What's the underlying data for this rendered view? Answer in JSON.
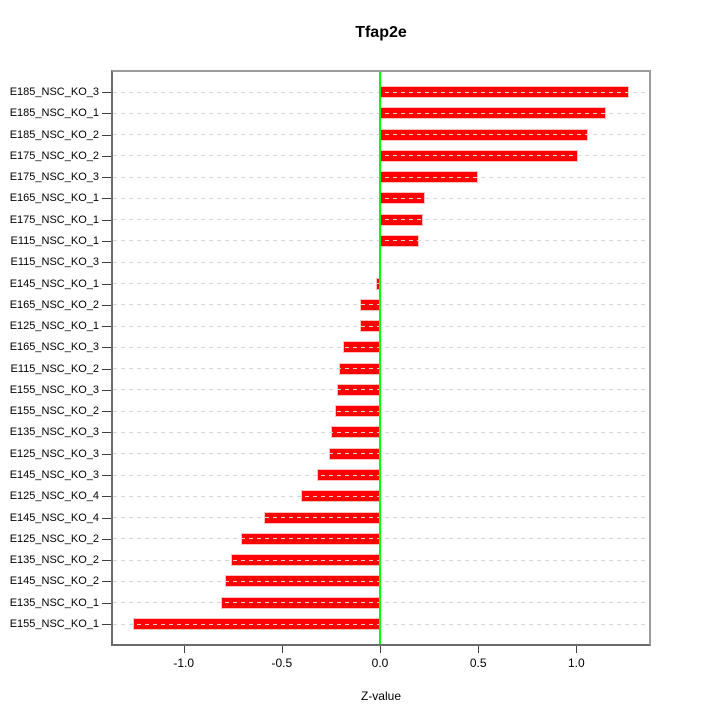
{
  "figure": {
    "background": "#ffffff"
  },
  "chart_data": {
    "type": "bar",
    "orientation": "horizontal",
    "title": "Tfap2e",
    "xlabel": "Z-value",
    "ylabel": "",
    "legend": "none",
    "grid": "horizontal dashed line per category",
    "categories": [
      "E185_NSC_KO_3",
      "E185_NSC_KO_1",
      "E185_NSC_KO_2",
      "E175_NSC_KO_2",
      "E175_NSC_KO_3",
      "E165_NSC_KO_1",
      "E175_NSC_KO_1",
      "E115_NSC_KO_1",
      "E115_NSC_KO_3",
      "E145_NSC_KO_1",
      "E165_NSC_KO_2",
      "E125_NSC_KO_1",
      "E165_NSC_KO_3",
      "E115_NSC_KO_2",
      "E155_NSC_KO_3",
      "E155_NSC_KO_2",
      "E135_NSC_KO_3",
      "E125_NSC_KO_3",
      "E145_NSC_KO_3",
      "E125_NSC_KO_4",
      "E145_NSC_KO_4",
      "E125_NSC_KO_2",
      "E135_NSC_KO_2",
      "E145_NSC_KO_2",
      "E135_NSC_KO_1",
      "E155_NSC_KO_1"
    ],
    "values": [
      1.27,
      1.15,
      1.06,
      1.01,
      0.5,
      0.23,
      0.22,
      0.2,
      0.0,
      -0.02,
      -0.1,
      -0.1,
      -0.19,
      -0.21,
      -0.22,
      -0.23,
      -0.25,
      -0.26,
      -0.32,
      -0.4,
      -0.59,
      -0.71,
      -0.76,
      -0.79,
      -0.81,
      -1.26
    ],
    "xlim": [
      -1.36,
      1.37
    ],
    "xticks": [
      -1.0,
      -0.5,
      0.0,
      0.5,
      1.0
    ],
    "xtick_labels": [
      "-1.0",
      "-0.5",
      "0.0",
      "0.5",
      "1.0"
    ],
    "colors": {
      "bar_fill": "#ff0000",
      "bar_border": "#ffc0c0",
      "zero_line": "#00ff00",
      "gridline": "#d6d6d6",
      "axis_box": "#8f8f8f",
      "tick": "#404040",
      "text": "#000000"
    }
  }
}
